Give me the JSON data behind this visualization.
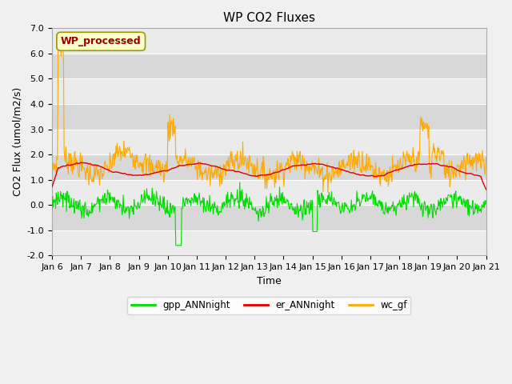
{
  "title": "WP CO2 Fluxes",
  "ylabel": "CO2 Flux (umol/m2/s)",
  "xlabel": "Time",
  "ylim": [
    -2.0,
    7.0
  ],
  "yticks": [
    -2.0,
    -1.0,
    0.0,
    1.0,
    2.0,
    3.0,
    4.0,
    5.0,
    6.0,
    7.0
  ],
  "xtick_labels": [
    "Jan 6",
    "Jan 7",
    "Jan 8",
    "Jan 9",
    "Jan 10",
    "Jan 11",
    "Jan 12",
    "Jan 13",
    "Jan 14",
    "Jan 15",
    "Jan 16",
    "Jan 17",
    "Jan 18",
    "Jan 19",
    "Jan 20",
    "Jan 21"
  ],
  "legend_labels": [
    "gpp_ANNnight",
    "er_ANNnight",
    "wc_gf"
  ],
  "line_colors": [
    "#00dd00",
    "#dd0000",
    "#ffaa00"
  ],
  "wp_box_text": "WP_processed",
  "wp_box_facecolor": "#ffffcc",
  "wp_box_edgecolor": "#999900",
  "wp_text_color": "#990000",
  "fig_facecolor": "#f0f0f0",
  "plot_facecolor": "#ffffff",
  "band_light": "#ebebeb",
  "band_dark": "#d8d8d8",
  "title_fontsize": 11,
  "label_fontsize": 9,
  "tick_fontsize": 8,
  "n_points": 720,
  "n_days": 15
}
